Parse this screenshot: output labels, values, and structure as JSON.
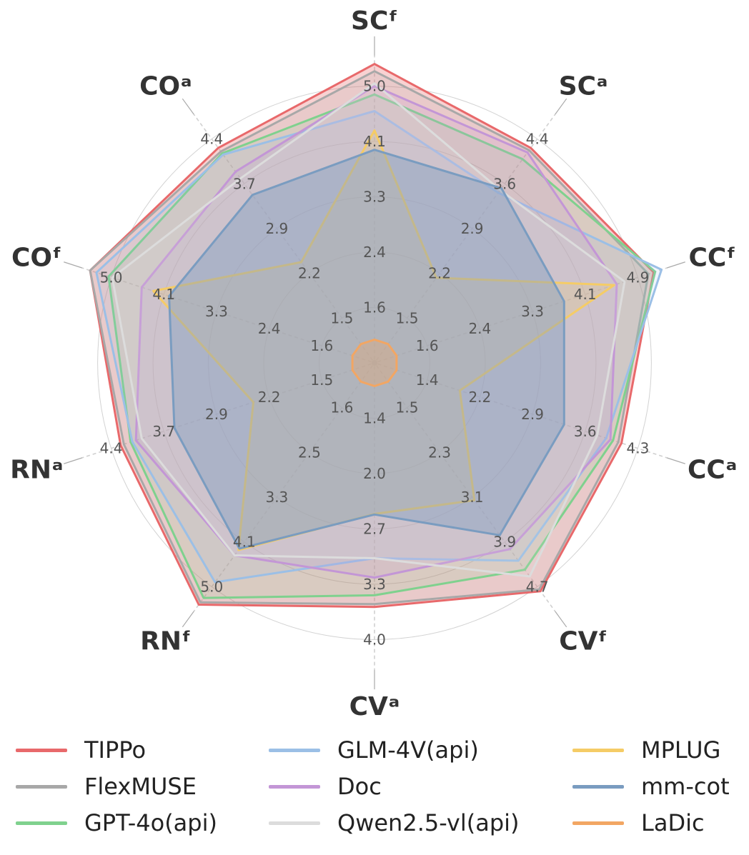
{
  "chart_data": {
    "type": "radar",
    "axes": [
      {
        "label": "SCᶠ",
        "ticks": [
          "1.6",
          "2.4",
          "3.3",
          "4.1",
          "5.0"
        ]
      },
      {
        "label": "SCᵃ",
        "ticks": [
          "1.5",
          "2.2",
          "2.9",
          "3.6",
          "4.4"
        ]
      },
      {
        "label": "CCᶠ",
        "ticks": [
          "1.6",
          "2.4",
          "3.3",
          "4.1",
          "4.9"
        ]
      },
      {
        "label": "CCᵃ",
        "ticks": [
          "1.4",
          "2.2",
          "2.9",
          "3.6",
          "4.3"
        ]
      },
      {
        "label": "CVᶠ",
        "ticks": [
          "1.5",
          "2.3",
          "3.1",
          "3.9",
          "4.7"
        ]
      },
      {
        "label": "CVᵃ",
        "ticks": [
          "1.4",
          "2.0",
          "2.7",
          "3.3",
          "4.0"
        ]
      },
      {
        "label": "RNᶠ",
        "ticks": [
          "1.6",
          "2.5",
          "3.3",
          "4.1",
          "5.0"
        ]
      },
      {
        "label": "RNᵃ",
        "ticks": [
          "1.5",
          "2.2",
          "2.9",
          "3.7",
          "4.4"
        ]
      },
      {
        "label": "COᶠ",
        "ticks": [
          "1.6",
          "2.4",
          "3.3",
          "4.1",
          "5.0"
        ]
      },
      {
        "label": "COᵃ",
        "ticks": [
          "1.5",
          "2.2",
          "2.9",
          "3.7",
          "4.4"
        ]
      }
    ],
    "series": [
      {
        "name": "TIPPo",
        "color": "#e8696b",
        "fill_opacity": 0.3,
        "values": [
          5.4,
          4.8,
          5.3,
          4.69,
          5.1,
          4.41,
          5.4,
          4.82,
          5.4,
          4.8
        ]
      },
      {
        "name": "FlexMUSE",
        "color": "#a8a8a8",
        "fill_opacity": 0.18,
        "values": [
          5.27,
          4.75,
          5.2,
          4.63,
          5.06,
          4.36,
          5.35,
          4.76,
          5.4,
          4.72
        ]
      },
      {
        "name": "GPT-4o(api)",
        "color": "#7fd18e",
        "fill_opacity": 0.15,
        "values": [
          4.85,
          4.55,
          5.33,
          4.53,
          4.62,
          4.2,
          5.25,
          4.63,
          5.05,
          4.68
        ]
      },
      {
        "name": "GLM-4V(api)",
        "color": "#9bbfe6",
        "fill_opacity": 0.15,
        "values": [
          4.55,
          3.8,
          5.45,
          4.4,
          4.42,
          3.53,
          4.9,
          4.6,
          5.28,
          4.65
        ]
      },
      {
        "name": "Doc",
        "color": "#c396d6",
        "fill_opacity": 0.18,
        "values": [
          5.0,
          4.7,
          4.6,
          4.48,
          4.16,
          3.88,
          4.3,
          4.53,
          4.42,
          4.27
        ]
      },
      {
        "name": "Qwen2.5-vl(api)",
        "color": "#dcdcdc",
        "fill_opacity": 0.15,
        "values": [
          5.05,
          3.86,
          4.75,
          4.23,
          4.77,
          3.53,
          4.3,
          4.42,
          4.98,
          4.12
        ]
      },
      {
        "name": "MPLUG",
        "color": "#f5cc66",
        "fill_opacity": 0.2,
        "values": [
          4.2,
          1.9,
          4.55,
          1.62,
          3.07,
          2.73,
          4.18,
          2.3,
          4.2,
          2.25
        ]
      },
      {
        "name": "mm-cot",
        "color": "#7a9cc0",
        "fill_opacity": 0.4,
        "values": [
          3.85,
          3.9,
          3.6,
          3.6,
          3.85,
          2.74,
          4.15,
          3.8,
          3.9,
          3.75
        ]
      },
      {
        "name": "LaDic",
        "color": "#f2a663",
        "fill_opacity": 0.3,
        "values": [
          0.42,
          0.42,
          0.42,
          0.42,
          0.42,
          0.42,
          0.42,
          0.42,
          0.42,
          0.42
        ]
      }
    ],
    "rmax": 5.55,
    "grid": true,
    "legend_position": "bottom"
  }
}
